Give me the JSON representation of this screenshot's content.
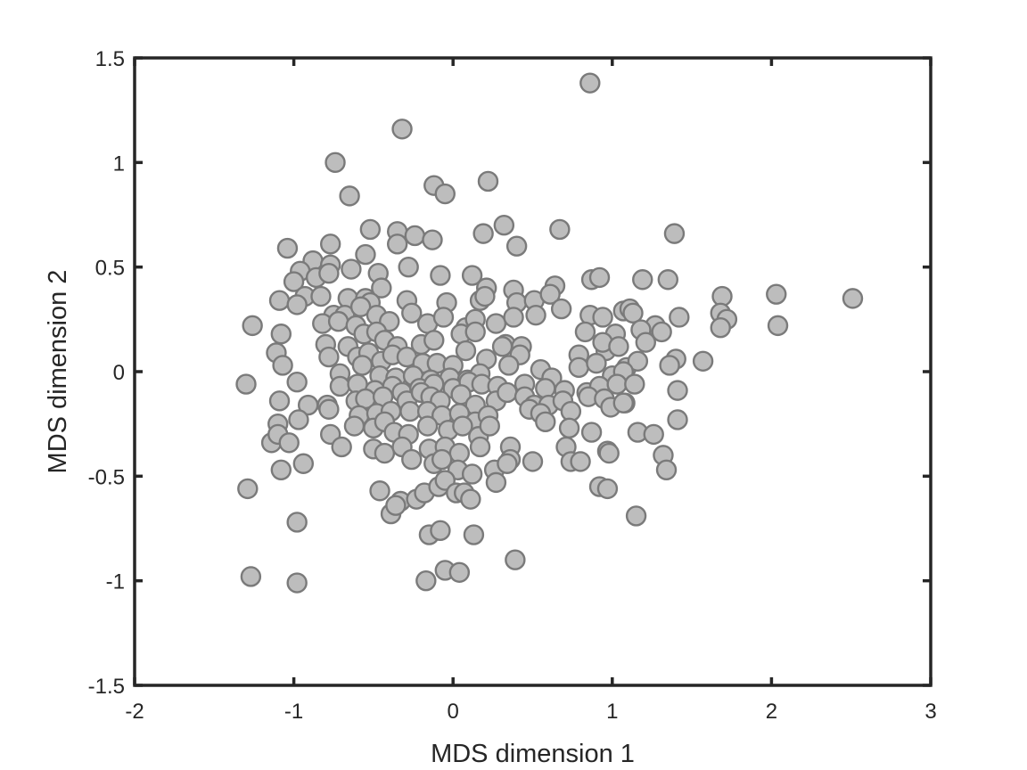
{
  "chart_data": {
    "type": "scatter",
    "xlabel": "MDS dimension 1",
    "ylabel": "MDS dimension 2",
    "xlim": [
      -2,
      3
    ],
    "ylim": [
      -1.5,
      1.5
    ],
    "xticks": [
      "-2",
      "-1",
      "0",
      "1",
      "2",
      "3"
    ],
    "yticks": [
      "-1.5",
      "-1",
      "-0.5",
      "0",
      "0.5",
      "1",
      "1.5"
    ],
    "grid": false,
    "box": true,
    "marker_color": "#bdbdbd",
    "marker_edge_color": "#7a7a7a",
    "points": [
      [
        0.86,
        1.38
      ],
      [
        -0.32,
        1.16
      ],
      [
        -0.74,
        1.0
      ],
      [
        -0.65,
        0.84
      ],
      [
        -0.12,
        0.89
      ],
      [
        -0.05,
        0.85
      ],
      [
        0.22,
        0.91
      ],
      [
        -0.52,
        0.68
      ],
      [
        -0.35,
        0.67
      ],
      [
        -0.24,
        0.65
      ],
      [
        -0.13,
        0.63
      ],
      [
        0.19,
        0.66
      ],
      [
        0.32,
        0.7
      ],
      [
        0.67,
        0.68
      ],
      [
        1.39,
        0.66
      ],
      [
        -1.04,
        0.59
      ],
      [
        -0.77,
        0.61
      ],
      [
        -0.55,
        0.56
      ],
      [
        -0.35,
        0.61
      ],
      [
        0.4,
        0.6
      ],
      [
        -0.88,
        0.53
      ],
      [
        -0.96,
        0.48
      ],
      [
        -0.77,
        0.51
      ],
      [
        -0.64,
        0.49
      ],
      [
        -0.47,
        0.47
      ],
      [
        -0.28,
        0.5
      ],
      [
        -0.08,
        0.46
      ],
      [
        0.12,
        0.46
      ],
      [
        -1.0,
        0.43
      ],
      [
        -0.86,
        0.45
      ],
      [
        -0.78,
        0.47
      ],
      [
        -0.45,
        0.4
      ],
      [
        0.21,
        0.4
      ],
      [
        0.38,
        0.39
      ],
      [
        0.64,
        0.41
      ],
      [
        0.87,
        0.44
      ],
      [
        0.92,
        0.45
      ],
      [
        1.19,
        0.44
      ],
      [
        1.35,
        0.44
      ],
      [
        -1.09,
        0.34
      ],
      [
        -0.93,
        0.36
      ],
      [
        -0.83,
        0.36
      ],
      [
        -0.66,
        0.35
      ],
      [
        -0.55,
        0.35
      ],
      [
        -0.52,
        0.33
      ],
      [
        -0.29,
        0.34
      ],
      [
        -0.04,
        0.33
      ],
      [
        0.17,
        0.34
      ],
      [
        0.2,
        0.36
      ],
      [
        0.4,
        0.33
      ],
      [
        0.51,
        0.34
      ],
      [
        0.61,
        0.37
      ],
      [
        0.68,
        0.3
      ],
      [
        1.69,
        0.36
      ],
      [
        2.03,
        0.37
      ],
      [
        2.51,
        0.35
      ],
      [
        -0.98,
        0.32
      ],
      [
        -0.75,
        0.27
      ],
      [
        -0.68,
        0.27
      ],
      [
        -0.58,
        0.31
      ],
      [
        -0.48,
        0.27
      ],
      [
        -0.4,
        0.24
      ],
      [
        -0.26,
        0.28
      ],
      [
        -0.16,
        0.23
      ],
      [
        -0.06,
        0.26
      ],
      [
        0.08,
        0.21
      ],
      [
        0.14,
        0.25
      ],
      [
        0.27,
        0.23
      ],
      [
        0.38,
        0.26
      ],
      [
        0.52,
        0.27
      ],
      [
        0.86,
        0.27
      ],
      [
        0.94,
        0.26
      ],
      [
        1.07,
        0.29
      ],
      [
        1.11,
        0.3
      ],
      [
        1.13,
        0.28
      ],
      [
        1.27,
        0.22
      ],
      [
        1.42,
        0.26
      ],
      [
        1.68,
        0.28
      ],
      [
        1.72,
        0.25
      ],
      [
        -1.26,
        0.22
      ],
      [
        -1.08,
        0.18
      ],
      [
        -0.82,
        0.23
      ],
      [
        -0.72,
        0.24
      ],
      [
        -0.61,
        0.22
      ],
      [
        -0.56,
        0.18
      ],
      [
        -0.48,
        0.19
      ],
      [
        -0.43,
        0.15
      ],
      [
        -0.35,
        0.12
      ],
      [
        -0.2,
        0.13
      ],
      [
        -0.12,
        0.15
      ],
      [
        0.05,
        0.18
      ],
      [
        0.14,
        0.19
      ],
      [
        0.33,
        0.13
      ],
      [
        0.43,
        0.12
      ],
      [
        0.83,
        0.19
      ],
      [
        0.96,
        0.1
      ],
      [
        1.02,
        0.18
      ],
      [
        1.18,
        0.2
      ],
      [
        1.21,
        0.14
      ],
      [
        1.31,
        0.19
      ],
      [
        1.68,
        0.21
      ],
      [
        2.04,
        0.22
      ],
      [
        -1.11,
        0.09
      ],
      [
        -0.8,
        0.13
      ],
      [
        -0.78,
        0.07
      ],
      [
        -0.66,
        0.12
      ],
      [
        -0.6,
        0.07
      ],
      [
        -0.53,
        0.09
      ],
      [
        -0.45,
        0.05
      ],
      [
        -0.38,
        0.08
      ],
      [
        -0.29,
        0.07
      ],
      [
        -0.19,
        0.04
      ],
      [
        -0.1,
        0.04
      ],
      [
        0.0,
        0.03
      ],
      [
        0.08,
        0.1
      ],
      [
        0.21,
        0.06
      ],
      [
        0.31,
        0.12
      ],
      [
        0.42,
        0.08
      ],
      [
        0.79,
        0.08
      ],
      [
        0.94,
        0.14
      ],
      [
        1.04,
        0.12
      ],
      [
        1.09,
        0.02
      ],
      [
        1.16,
        0.05
      ],
      [
        1.4,
        0.06
      ],
      [
        1.57,
        0.05
      ],
      [
        -1.07,
        0.03
      ],
      [
        -0.71,
        -0.01
      ],
      [
        -0.57,
        0.03
      ],
      [
        -0.46,
        -0.02
      ],
      [
        -0.36,
        -0.03
      ],
      [
        -0.25,
        -0.02
      ],
      [
        -0.14,
        -0.04
      ],
      [
        -0.02,
        -0.03
      ],
      [
        0.09,
        -0.04
      ],
      [
        0.17,
        -0.01
      ],
      [
        0.35,
        0.03
      ],
      [
        0.55,
        0.01
      ],
      [
        0.62,
        -0.03
      ],
      [
        0.79,
        0.02
      ],
      [
        0.9,
        0.04
      ],
      [
        1.0,
        -0.02
      ],
      [
        1.07,
        0.0
      ],
      [
        1.36,
        0.03
      ],
      [
        -1.3,
        -0.06
      ],
      [
        -0.98,
        -0.05
      ],
      [
        -0.71,
        -0.07
      ],
      [
        -0.6,
        -0.06
      ],
      [
        -0.49,
        -0.09
      ],
      [
        -0.38,
        -0.07
      ],
      [
        -0.32,
        -0.1
      ],
      [
        -0.21,
        -0.08
      ],
      [
        -0.12,
        -0.06
      ],
      [
        0.0,
        -0.08
      ],
      [
        0.1,
        -0.05
      ],
      [
        0.18,
        -0.06
      ],
      [
        0.28,
        -0.07
      ],
      [
        0.45,
        -0.06
      ],
      [
        0.58,
        -0.08
      ],
      [
        0.7,
        -0.09
      ],
      [
        0.84,
        -0.1
      ],
      [
        0.92,
        -0.07
      ],
      [
        1.03,
        -0.06
      ],
      [
        1.14,
        -0.06
      ],
      [
        1.41,
        -0.09
      ],
      [
        -1.09,
        -0.14
      ],
      [
        -0.91,
        -0.16
      ],
      [
        -0.79,
        -0.16
      ],
      [
        -0.61,
        -0.14
      ],
      [
        -0.55,
        -0.13
      ],
      [
        -0.44,
        -0.12
      ],
      [
        -0.29,
        -0.14
      ],
      [
        -0.2,
        -0.1
      ],
      [
        -0.14,
        -0.12
      ],
      [
        -0.08,
        -0.14
      ],
      [
        0.05,
        -0.11
      ],
      [
        0.14,
        -0.16
      ],
      [
        0.27,
        -0.14
      ],
      [
        0.34,
        -0.1
      ],
      [
        0.45,
        -0.12
      ],
      [
        0.51,
        -0.16
      ],
      [
        0.6,
        -0.16
      ],
      [
        0.69,
        -0.14
      ],
      [
        0.85,
        -0.12
      ],
      [
        0.95,
        -0.13
      ],
      [
        1.08,
        -0.15
      ],
      [
        -1.1,
        -0.25
      ],
      [
        -0.97,
        -0.23
      ],
      [
        -0.78,
        -0.18
      ],
      [
        -0.59,
        -0.21
      ],
      [
        -0.48,
        -0.2
      ],
      [
        -0.39,
        -0.19
      ],
      [
        -0.27,
        -0.19
      ],
      [
        -0.16,
        -0.19
      ],
      [
        -0.07,
        -0.21
      ],
      [
        0.04,
        -0.2
      ],
      [
        0.14,
        -0.24
      ],
      [
        0.22,
        -0.21
      ],
      [
        0.48,
        -0.18
      ],
      [
        0.55,
        -0.2
      ],
      [
        0.58,
        -0.24
      ],
      [
        0.74,
        -0.19
      ],
      [
        0.99,
        -0.17
      ],
      [
        1.07,
        -0.15
      ],
      [
        1.41,
        -0.23
      ],
      [
        -1.14,
        -0.34
      ],
      [
        -1.1,
        -0.3
      ],
      [
        -1.03,
        -0.34
      ],
      [
        -0.77,
        -0.3
      ],
      [
        -0.62,
        -0.26
      ],
      [
        -0.5,
        -0.27
      ],
      [
        -0.43,
        -0.24
      ],
      [
        -0.37,
        -0.29
      ],
      [
        -0.28,
        -0.3
      ],
      [
        -0.16,
        -0.26
      ],
      [
        -0.03,
        -0.28
      ],
      [
        0.06,
        -0.26
      ],
      [
        0.16,
        -0.31
      ],
      [
        0.23,
        -0.26
      ],
      [
        0.73,
        -0.27
      ],
      [
        0.87,
        -0.29
      ],
      [
        1.16,
        -0.29
      ],
      [
        1.26,
        -0.3
      ],
      [
        -0.7,
        -0.36
      ],
      [
        -0.5,
        -0.37
      ],
      [
        -0.43,
        -0.39
      ],
      [
        -0.32,
        -0.36
      ],
      [
        -0.26,
        -0.42
      ],
      [
        -0.15,
        -0.37
      ],
      [
        -0.05,
        -0.36
      ],
      [
        0.04,
        -0.39
      ],
      [
        0.17,
        -0.36
      ],
      [
        0.36,
        -0.36
      ],
      [
        0.36,
        -0.42
      ],
      [
        0.71,
        -0.36
      ],
      [
        0.97,
        -0.38
      ],
      [
        0.98,
        -0.39
      ],
      [
        -1.08,
        -0.47
      ],
      [
        -0.94,
        -0.44
      ],
      [
        -0.12,
        -0.44
      ],
      [
        -0.07,
        -0.42
      ],
      [
        0.03,
        -0.47
      ],
      [
        0.12,
        -0.49
      ],
      [
        0.26,
        -0.47
      ],
      [
        0.34,
        -0.44
      ],
      [
        0.5,
        -0.43
      ],
      [
        0.74,
        -0.43
      ],
      [
        0.8,
        -0.43
      ],
      [
        1.32,
        -0.4
      ],
      [
        1.34,
        -0.47
      ],
      [
        -1.29,
        -0.56
      ],
      [
        -0.46,
        -0.57
      ],
      [
        -0.33,
        -0.62
      ],
      [
        -0.23,
        -0.61
      ],
      [
        -0.18,
        -0.58
      ],
      [
        -0.09,
        -0.55
      ],
      [
        -0.05,
        -0.52
      ],
      [
        0.02,
        -0.58
      ],
      [
        0.07,
        -0.58
      ],
      [
        0.11,
        -0.61
      ],
      [
        0.27,
        -0.53
      ],
      [
        0.92,
        -0.55
      ],
      [
        0.97,
        -0.56
      ],
      [
        -0.98,
        -0.72
      ],
      [
        -0.39,
        -0.68
      ],
      [
        -0.36,
        -0.64
      ],
      [
        -0.15,
        -0.78
      ],
      [
        -0.08,
        -0.76
      ],
      [
        0.13,
        -0.78
      ],
      [
        1.15,
        -0.69
      ],
      [
        -1.27,
        -0.98
      ],
      [
        -0.98,
        -1.01
      ],
      [
        -0.17,
        -1.0
      ],
      [
        -0.05,
        -0.95
      ],
      [
        0.04,
        -0.96
      ],
      [
        0.39,
        -0.9
      ]
    ]
  }
}
